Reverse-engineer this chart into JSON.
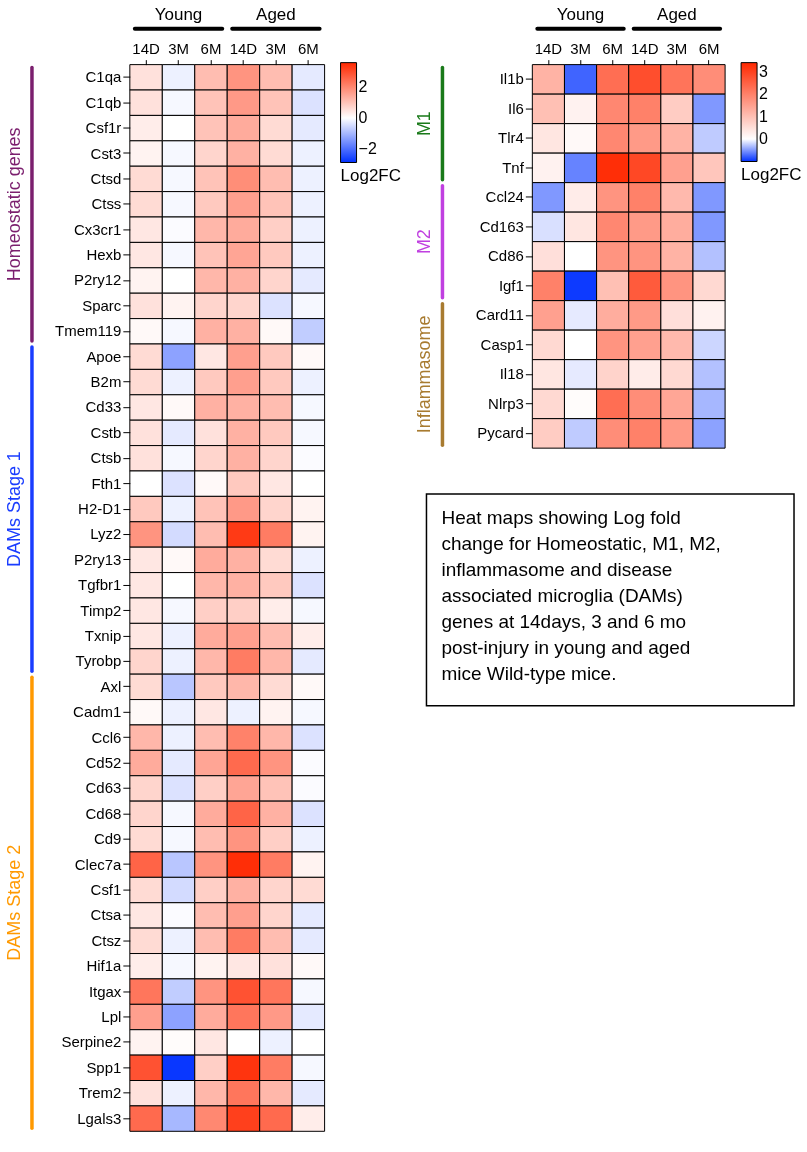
{
  "chart_data": [
    {
      "type": "heatmap",
      "clabel": "Log2FC",
      "clim": [
        -2.9,
        3.6
      ],
      "cticks": [
        -2,
        0,
        2
      ],
      "categories": [
        "14D",
        "3M",
        "6M",
        "14D",
        "3M",
        "6M"
      ],
      "y_categories": [
        "C1qa",
        "C1qb",
        "Csf1r",
        "Cst3",
        "Ctsd",
        "Ctss",
        "Cx3cr1",
        "Hexb",
        "P2ry12",
        "Sparc",
        "Tmem119",
        "Apoe",
        "B2m",
        "Cd33",
        "Cstb",
        "Ctsb",
        "Fth1",
        "H2-D1",
        "Lyz2",
        "P2ry13",
        "Tgfbr1",
        "Timp2",
        "Txnip",
        "Tyrobp",
        "Axl",
        "Cadm1",
        "Ccl6",
        "Cd52",
        "Cd63",
        "Cd68",
        "Cd9",
        "Clec7a",
        "Csf1",
        "Ctsa",
        "Ctsz",
        "Hif1a",
        "Itgax",
        "Lpl",
        "Serpine2",
        "Spp1",
        "Trem2",
        "Lgals3"
      ],
      "cells": [
        [
          0.5,
          -0.2,
          1.1,
          1.8,
          1.1,
          -0.3
        ],
        [
          0.5,
          -0.1,
          1.0,
          1.7,
          1.0,
          -0.4
        ],
        [
          0.3,
          0.0,
          1.0,
          1.4,
          0.6,
          -0.3
        ],
        [
          0.2,
          -0.1,
          0.7,
          1.3,
          0.6,
          -0.2
        ],
        [
          0.6,
          -0.1,
          1.0,
          1.9,
          1.1,
          -0.2
        ],
        [
          0.6,
          -0.1,
          0.9,
          1.6,
          1.0,
          -0.2
        ],
        [
          0.4,
          -0.05,
          1.2,
          1.4,
          0.8,
          -0.2
        ],
        [
          0.4,
          -0.1,
          1.0,
          1.5,
          0.9,
          -0.2
        ],
        [
          0.2,
          0.0,
          1.2,
          1.3,
          0.7,
          -0.3
        ],
        [
          0.5,
          0.2,
          0.7,
          0.7,
          -0.4,
          -0.1
        ],
        [
          0.1,
          -0.1,
          1.3,
          1.3,
          0.1,
          -0.7
        ],
        [
          0.6,
          -1.3,
          0.4,
          1.6,
          0.9,
          0.1
        ],
        [
          0.6,
          -0.2,
          0.9,
          1.6,
          0.9,
          -0.2
        ],
        [
          0.4,
          0.1,
          1.3,
          1.3,
          1.1,
          -0.1
        ],
        [
          0.5,
          -0.3,
          0.5,
          1.3,
          0.9,
          -0.1
        ],
        [
          0.5,
          -0.1,
          0.7,
          1.3,
          0.7,
          -0.05
        ],
        [
          0.0,
          -0.4,
          0.1,
          0.9,
          0.4,
          0.0
        ],
        [
          0.9,
          -0.2,
          1.0,
          1.7,
          0.7,
          0.2
        ],
        [
          1.8,
          -0.5,
          1.1,
          3.3,
          2.2,
          0.2
        ],
        [
          0.4,
          0.1,
          1.4,
          1.3,
          0.6,
          -0.2
        ],
        [
          0.4,
          0.0,
          1.2,
          1.3,
          0.9,
          -0.4
        ],
        [
          0.4,
          -0.1,
          0.8,
          0.8,
          0.3,
          -0.1
        ],
        [
          0.4,
          -0.2,
          1.4,
          1.6,
          1.1,
          0.3
        ],
        [
          0.7,
          -0.2,
          1.2,
          2.2,
          1.2,
          -0.3
        ],
        [
          0.6,
          -0.8,
          0.9,
          1.2,
          0.6,
          0.1
        ],
        [
          0.1,
          -0.2,
          0.4,
          -0.2,
          0.2,
          -0.1
        ],
        [
          1.2,
          -0.2,
          1.1,
          2.1,
          1.2,
          -0.4
        ],
        [
          1.4,
          -0.3,
          1.5,
          2.5,
          1.8,
          -0.05
        ],
        [
          0.7,
          -0.4,
          0.8,
          1.5,
          1.0,
          -0.05
        ],
        [
          0.7,
          -0.1,
          1.4,
          2.6,
          1.3,
          -0.4
        ],
        [
          0.6,
          -0.1,
          1.1,
          1.8,
          0.8,
          -0.2
        ],
        [
          2.6,
          -0.8,
          1.8,
          3.5,
          2.2,
          0.2
        ],
        [
          0.6,
          -0.5,
          0.8,
          1.3,
          0.7,
          0.6
        ],
        [
          0.4,
          -0.05,
          1.1,
          1.6,
          0.7,
          -0.3
        ],
        [
          0.6,
          -0.2,
          1.1,
          2.2,
          1.1,
          -0.3
        ],
        [
          0.3,
          -0.1,
          0.2,
          0.4,
          0.5,
          0.1
        ],
        [
          2.3,
          -0.7,
          1.8,
          2.9,
          2.3,
          -0.1
        ],
        [
          1.6,
          -1.3,
          1.4,
          2.3,
          1.7,
          -0.3
        ],
        [
          0.2,
          0.05,
          0.4,
          0.0,
          -0.2,
          0.0
        ],
        [
          2.9,
          -2.8,
          0.8,
          3.4,
          2.2,
          -0.1
        ],
        [
          0.5,
          -0.2,
          1.2,
          2.3,
          1.2,
          -0.3
        ],
        [
          2.5,
          -1.0,
          2.0,
          3.2,
          2.5,
          0.3
        ]
      ],
      "annotations": [
        "Young",
        "Aged",
        "Homeostatic genes",
        "DAMs Stage 1",
        "DAMs Stage 2"
      ]
    },
    {
      "type": "heatmap",
      "clabel": "Log2FC",
      "clim": [
        -1.0,
        3.4
      ],
      "cticks": [
        0,
        1,
        2,
        3
      ],
      "categories": [
        "14D",
        "3M",
        "6M",
        "14D",
        "3M",
        "6M"
      ],
      "y_categories": [
        "Il1b",
        "Il6",
        "Tlr4",
        "Tnf",
        "Ccl24",
        "Cd163",
        "Cd86",
        "Igf1",
        "Card11",
        "Casp1",
        "Il18",
        "Nlrp3",
        "Pycard"
      ],
      "cells": [
        [
          1.2,
          -0.75,
          2.3,
          2.8,
          2.2,
          1.8
        ],
        [
          1.0,
          0.2,
          1.9,
          2.0,
          0.8,
          -0.5
        ],
        [
          0.4,
          0.1,
          1.9,
          1.6,
          1.2,
          -0.25
        ],
        [
          0.2,
          -0.6,
          3.3,
          2.9,
          1.5,
          0.9
        ],
        [
          -0.5,
          0.3,
          1.7,
          2.0,
          1.1,
          -0.5
        ],
        [
          -0.15,
          0.4,
          1.9,
          1.6,
          1.3,
          -0.5
        ],
        [
          0.5,
          0.0,
          1.7,
          1.7,
          1.2,
          -0.3
        ],
        [
          2.0,
          -0.95,
          1.0,
          2.6,
          1.7,
          0.6
        ],
        [
          1.5,
          -0.1,
          1.3,
          1.6,
          0.5,
          0.2
        ],
        [
          0.6,
          0.0,
          1.7,
          1.5,
          1.1,
          -0.2
        ],
        [
          0.4,
          -0.1,
          0.7,
          0.3,
          0.6,
          -0.3
        ],
        [
          0.6,
          0.05,
          2.3,
          1.8,
          1.4,
          -0.35
        ],
        [
          0.8,
          -0.25,
          1.8,
          2.0,
          1.6,
          -0.45
        ]
      ],
      "annotations": [
        "Young",
        "Aged",
        "M1",
        "M2",
        "Inflammasome",
        "Heat maps showing Log fold change for Homeostatic, M1, M2, inflammasome and disease associated microglia (DAMs) genes at 14days, 3 and 6 mo post-injury in young and aged mice Wild-type mice."
      ]
    }
  ]
}
